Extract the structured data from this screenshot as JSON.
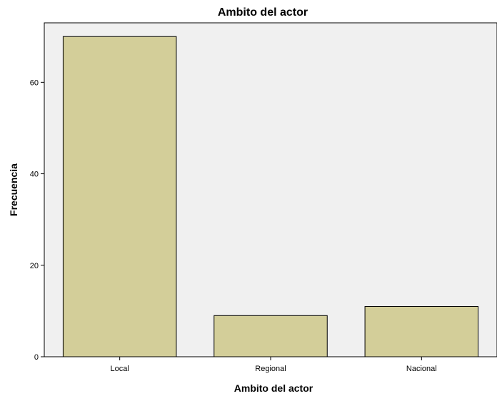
{
  "chart_data": {
    "type": "bar",
    "title": "Ambito del actor",
    "xlabel": "Ambito del actor",
    "ylabel": "Frecuencia",
    "categories": [
      "Local",
      "Regional",
      "Nacional"
    ],
    "values": [
      70,
      9,
      11
    ],
    "ylim": [
      0,
      73
    ],
    "yticks": [
      "0",
      "20",
      "40",
      "60"
    ],
    "grid": false,
    "legend": "none",
    "colors": {
      "bar_fill": "#d3ce99",
      "bar_stroke": "#000000",
      "plot_background": "#f0f0f0",
      "page_background": "#ffffff"
    }
  }
}
